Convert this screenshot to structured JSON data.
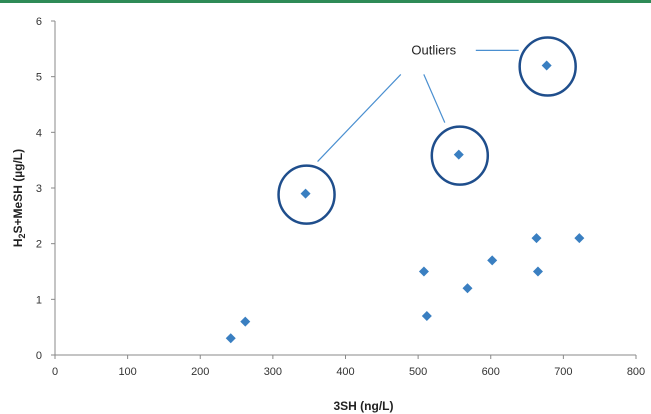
{
  "chart_data": {
    "type": "scatter",
    "xlabel": "3SH (ng/L)",
    "ylabel_main": "H",
    "ylabel_sub": "2",
    "ylabel_rest": "S+MeSH (µg/L)",
    "xlim": [
      0,
      800
    ],
    "ylim": [
      0,
      6
    ],
    "x_ticks": [
      0,
      100,
      200,
      300,
      400,
      500,
      600,
      700,
      800
    ],
    "x_tick_labels": [
      "0",
      "100",
      "200",
      "300",
      "400",
      "500",
      "600",
      "700",
      "800"
    ],
    "y_ticks": [
      0,
      1,
      2,
      3,
      4,
      5,
      6
    ],
    "y_tick_labels": [
      "0",
      "1",
      "2",
      "3",
      "4",
      "5",
      "6"
    ],
    "grid": false,
    "marker": "diamond",
    "series": [
      {
        "color": "#3a7fc1",
        "points": [
          {
            "x": 242,
            "y": 0.3
          },
          {
            "x": 262,
            "y": 0.6
          },
          {
            "x": 345,
            "y": 2.9
          },
          {
            "x": 508,
            "y": 1.5
          },
          {
            "x": 512,
            "y": 0.7
          },
          {
            "x": 556,
            "y": 3.6
          },
          {
            "x": 568,
            "y": 1.2
          },
          {
            "x": 602,
            "y": 1.7
          },
          {
            "x": 663,
            "y": 2.1
          },
          {
            "x": 665,
            "y": 1.5
          },
          {
            "x": 677,
            "y": 5.2
          },
          {
            "x": 722,
            "y": 2.1
          }
        ]
      }
    ],
    "annotation": {
      "text": "Outliers",
      "circled_points": [
        {
          "x": 345,
          "y": 2.9
        },
        {
          "x": 556,
          "y": 3.6
        },
        {
          "x": 677,
          "y": 5.2
        }
      ]
    },
    "circle_color": "#1f4e8c",
    "leader_color": "#4a8fd0",
    "axis_color": "#888888"
  }
}
